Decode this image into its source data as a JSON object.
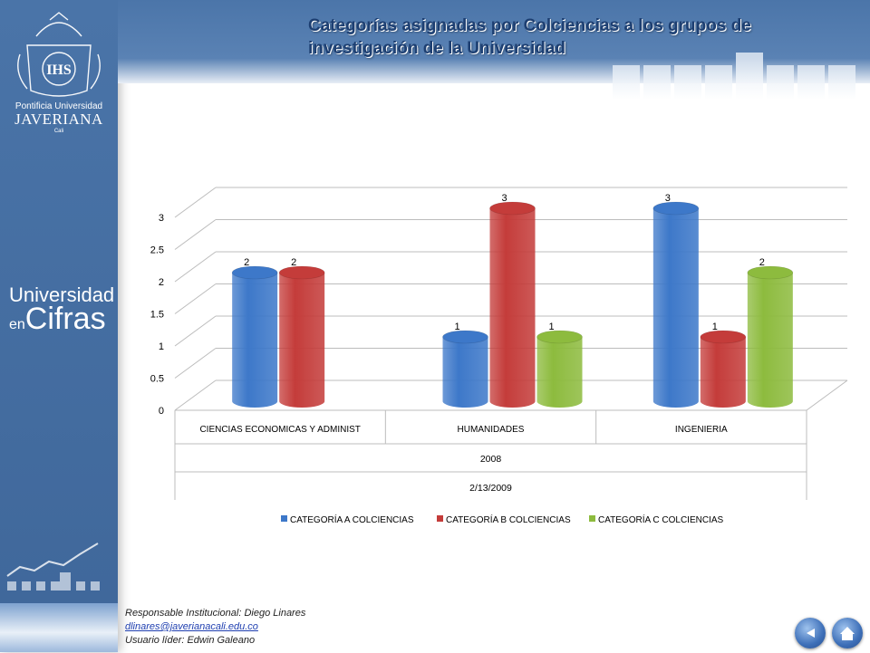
{
  "header": {
    "title": "Categorías asignadas por Colciencias a los grupos de investigación de la Universidad"
  },
  "sidebar": {
    "logo_line1": "Pontificia Universidad",
    "logo_line2": "JAVERIANA",
    "logo_line3": "Cali",
    "logo_seal_text": "IHS",
    "univ_line1": "Universidad",
    "univ_line2a": "en",
    "univ_line2b": "Cifras"
  },
  "footer": {
    "responsable": "Responsable Institucional: Diego Linares",
    "email": "dlinares@javerianacali.edu.co",
    "usuario": "Usuario líder: Edwin Galeano"
  },
  "nav": {
    "back_icon": "back-arrow-icon",
    "home_icon": "home-icon"
  },
  "chart_data": {
    "type": "bar",
    "categories": [
      "CIENCIAS ECONOMICAS Y ADMINIST",
      "HUMANIDADES",
      "INGENIERIA"
    ],
    "group_label": "2008",
    "date_label": "2/13/2009",
    "ylim": [
      0,
      3
    ],
    "yticks": [
      "0",
      "0.5",
      "1",
      "1.5",
      "2",
      "2.5",
      "3"
    ],
    "series": [
      {
        "name": "CATEGORÍA A COLCIENCIAS",
        "color": "#3d78c9",
        "values": [
          2,
          1,
          3
        ]
      },
      {
        "name": "CATEGORÍA B COLCIENCIAS",
        "color": "#c43c3a",
        "values": [
          2,
          3,
          1
        ]
      },
      {
        "name": "CATEGORÍA C COLCIENCIAS",
        "color": "#8dbb3e",
        "values": [
          null,
          1,
          2
        ]
      }
    ],
    "legend_position": "bottom",
    "grid": true
  }
}
